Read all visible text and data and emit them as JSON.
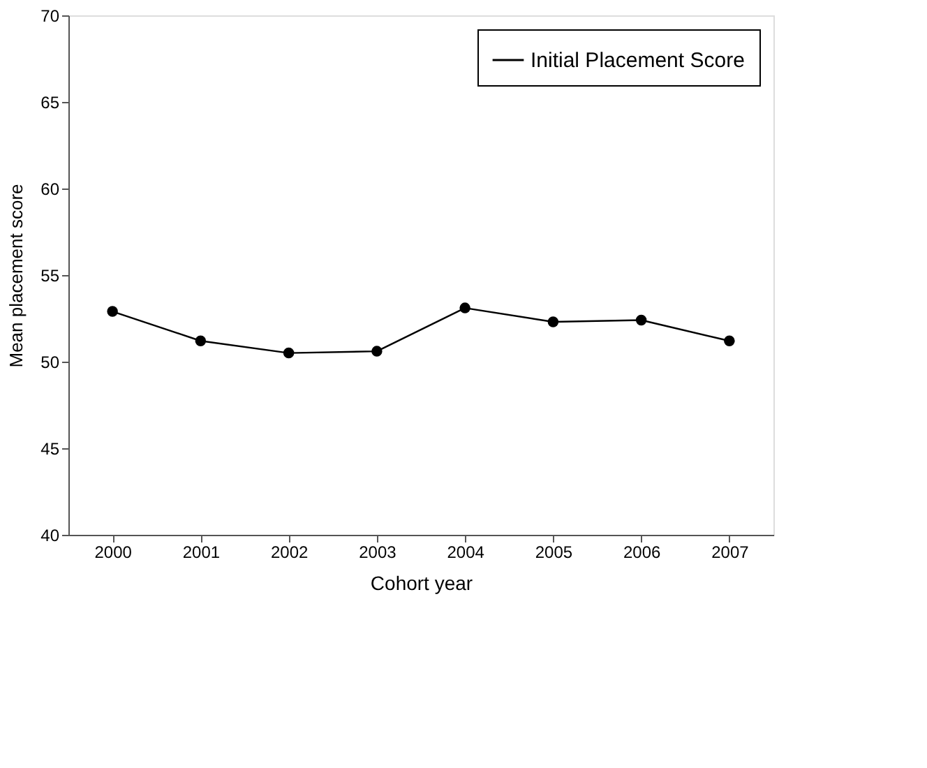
{
  "chart_data": {
    "type": "line",
    "xlabel": "Cohort year",
    "ylabel": "Mean placement score",
    "categories": [
      "2000",
      "2001",
      "2002",
      "2003",
      "2004",
      "2005",
      "2006",
      "2007"
    ],
    "series": [
      {
        "name": "Initial Placement Score",
        "color": "#000000",
        "values": [
          52.9,
          51.2,
          50.5,
          50.6,
          53.1,
          52.3,
          52.4,
          51.2
        ]
      }
    ],
    "ylim": [
      40,
      70
    ],
    "yticks": [
      40,
      45,
      50,
      55,
      60,
      65,
      70
    ],
    "grid": false,
    "legend": "top right",
    "marker": "circle",
    "line_style": "solid"
  }
}
